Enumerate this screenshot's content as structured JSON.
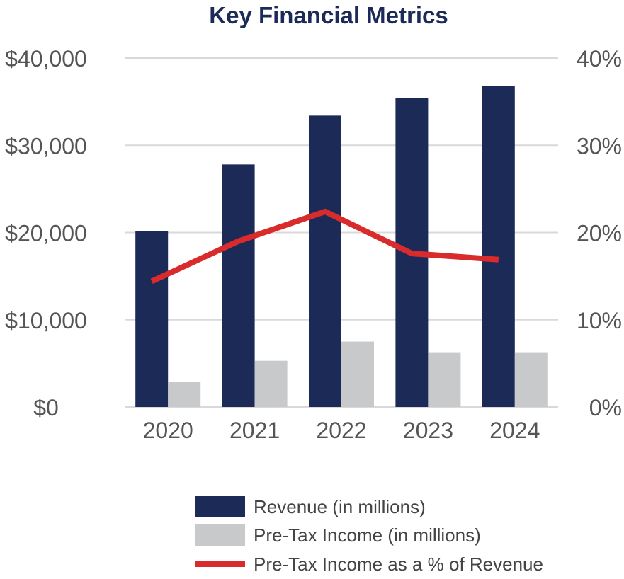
{
  "colors": {
    "revenue": "#1b2a57",
    "pretax_income": "#c8c9cb",
    "margin_line": "#d92b2b",
    "title": "#1b2a57",
    "gridline": "#d9d9d9",
    "axis_text": "#555555"
  },
  "chart_data": {
    "type": "bar",
    "title": "Key Financial Metrics",
    "categories": [
      "2020",
      "2021",
      "2022",
      "2023",
      "2024"
    ],
    "series": [
      {
        "name": "Revenue (in millions)",
        "type": "bar",
        "axis": "left",
        "values": [
          20200,
          27800,
          33400,
          35400,
          36800
        ]
      },
      {
        "name": "Pre-Tax Income (in millions)",
        "type": "bar",
        "axis": "left",
        "values": [
          2900,
          5300,
          7500,
          6200,
          6200
        ]
      },
      {
        "name": "Pre-Tax Income as a % of Revenue",
        "type": "line",
        "axis": "right",
        "values": [
          14.4,
          19.0,
          22.4,
          17.6,
          16.9
        ]
      }
    ],
    "y_left": {
      "min": 0,
      "max": 40000,
      "ticks": [
        "$0",
        "$10,000",
        "$20,000",
        "$30,000",
        "$40,000"
      ]
    },
    "y_right": {
      "min": 0,
      "max": 40,
      "ticks": [
        "0%",
        "10%",
        "20%",
        "30%",
        "40%"
      ]
    },
    "grid": true,
    "legend": {
      "position": "bottom-right"
    }
  }
}
